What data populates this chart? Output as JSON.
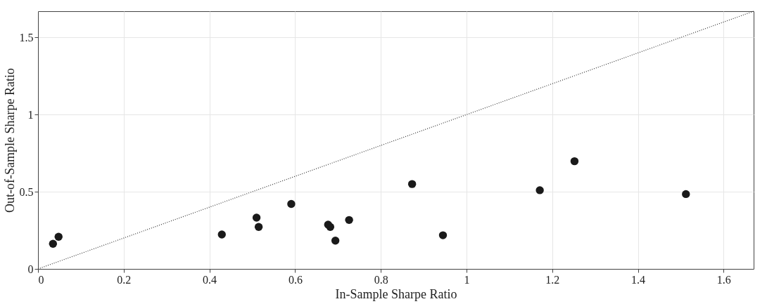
{
  "chart_data": {
    "type": "scatter",
    "xlabel": "In-Sample Sharpe Ratio",
    "ylabel": "Out-of-Sample Sharpe Ratio",
    "xlim": [
      0,
      1.67
    ],
    "ylim": [
      0,
      1.67
    ],
    "xticks": [
      0,
      0.2,
      0.4,
      0.6,
      0.8,
      1,
      1.2,
      1.4,
      1.6
    ],
    "yticks": [
      0,
      0.5,
      1,
      1.5
    ],
    "grid": true,
    "marker": "circle",
    "series": [
      {
        "color": "#1a1a1a",
        "x": [
          0.035,
          0.048,
          0.429,
          0.51,
          0.515,
          0.591,
          0.677,
          0.682,
          0.694,
          0.726,
          0.873,
          0.945,
          1.171,
          1.252,
          1.512
        ],
        "values": [
          0.163,
          0.208,
          0.223,
          0.332,
          0.272,
          0.421,
          0.287,
          0.272,
          0.183,
          0.317,
          0.55,
          0.218,
          0.51,
          0.698,
          0.485
        ]
      },
      {
        "type": "line",
        "color": "#333333",
        "line_style": "dotted",
        "marker": "none",
        "x": [
          0,
          1.67
        ],
        "values": [
          0,
          1.67
        ]
      }
    ]
  }
}
